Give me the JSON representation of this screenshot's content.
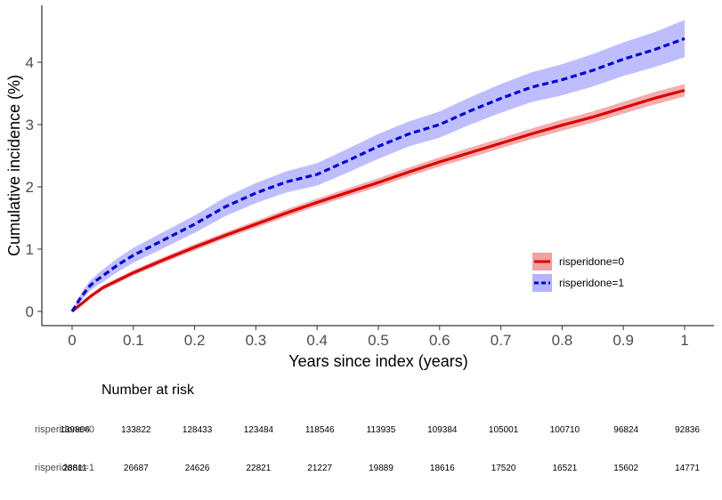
{
  "chart_data": {
    "type": "line",
    "xlabel": "Years since index (years)",
    "ylabel": "Cumulative incidence (%)",
    "xlim": [
      -0.05,
      1.05
    ],
    "ylim": [
      -0.2,
      4.95
    ],
    "x_ticks": [
      0,
      0.1,
      0.2,
      0.3,
      0.4,
      0.5,
      0.6,
      0.7,
      0.8,
      0.9,
      1
    ],
    "x_tick_labels": [
      "0",
      "0.1",
      "0.2",
      "0.3",
      "0.4",
      "0.5",
      "0.6",
      "0.7",
      "0.8",
      "0.9",
      "1"
    ],
    "y_ticks": [
      0,
      1,
      2,
      3,
      4
    ],
    "y_tick_labels": [
      "0",
      "1",
      "2",
      "3",
      "4"
    ],
    "grid": false,
    "legend_position": "bottom-right",
    "series": [
      {
        "name": "risperidone=0",
        "color": "#dd0000",
        "band_color": "#f08080",
        "line_style": "solid",
        "x": [
          0,
          0.005,
          0.01,
          0.02,
          0.03,
          0.04,
          0.05,
          0.075,
          0.1,
          0.15,
          0.2,
          0.25,
          0.3,
          0.35,
          0.4,
          0.45,
          0.5,
          0.55,
          0.6,
          0.65,
          0.7,
          0.75,
          0.8,
          0.85,
          0.9,
          0.95,
          1
        ],
        "y": [
          0,
          0.04,
          0.08,
          0.16,
          0.24,
          0.31,
          0.38,
          0.5,
          0.62,
          0.83,
          1.03,
          1.22,
          1.4,
          1.58,
          1.75,
          1.91,
          2.07,
          2.24,
          2.4,
          2.55,
          2.7,
          2.85,
          2.99,
          3.12,
          3.27,
          3.42,
          3.55
        ],
        "ci_halfwidth": [
          0,
          0.01,
          0.02,
          0.03,
          0.03,
          0.03,
          0.035,
          0.04,
          0.04,
          0.045,
          0.05,
          0.05,
          0.055,
          0.06,
          0.06,
          0.065,
          0.07,
          0.07,
          0.075,
          0.08,
          0.08,
          0.085,
          0.09,
          0.09,
          0.095,
          0.1,
          0.1
        ]
      },
      {
        "name": "risperidone=1",
        "color": "#0000dd",
        "band_color": "#9999ff",
        "line_style": "dashed",
        "x": [
          0,
          0.005,
          0.01,
          0.02,
          0.03,
          0.04,
          0.05,
          0.075,
          0.1,
          0.15,
          0.2,
          0.25,
          0.3,
          0.35,
          0.4,
          0.45,
          0.5,
          0.55,
          0.6,
          0.65,
          0.7,
          0.75,
          0.8,
          0.85,
          0.9,
          0.95,
          1
        ],
        "y": [
          0,
          0.08,
          0.16,
          0.3,
          0.42,
          0.5,
          0.57,
          0.75,
          0.9,
          1.15,
          1.4,
          1.68,
          1.9,
          2.08,
          2.2,
          2.42,
          2.65,
          2.85,
          3.0,
          3.22,
          3.42,
          3.6,
          3.72,
          3.87,
          4.05,
          4.2,
          4.38
        ]
      }
    ],
    "ci_band_halfwidth_risperidone1": [
      0,
      0.03,
      0.05,
      0.07,
      0.08,
      0.09,
      0.1,
      0.11,
      0.12,
      0.13,
      0.14,
      0.15,
      0.16,
      0.17,
      0.18,
      0.19,
      0.2,
      0.2,
      0.21,
      0.22,
      0.23,
      0.24,
      0.25,
      0.26,
      0.27,
      0.28,
      0.3
    ]
  },
  "risk_table": {
    "title": "Number at risk",
    "rows": [
      {
        "label": "risperidone=0",
        "counts": [
          "139806",
          "133822",
          "128433",
          "123484",
          "118546",
          "113935",
          "109384",
          "105001",
          "100710",
          "96824",
          "92836"
        ]
      },
      {
        "label": "risperidone=1",
        "counts": [
          "28811",
          "26687",
          "24626",
          "22821",
          "21227",
          "19889",
          "18616",
          "17520",
          "16521",
          "15602",
          "14771"
        ]
      }
    ]
  }
}
